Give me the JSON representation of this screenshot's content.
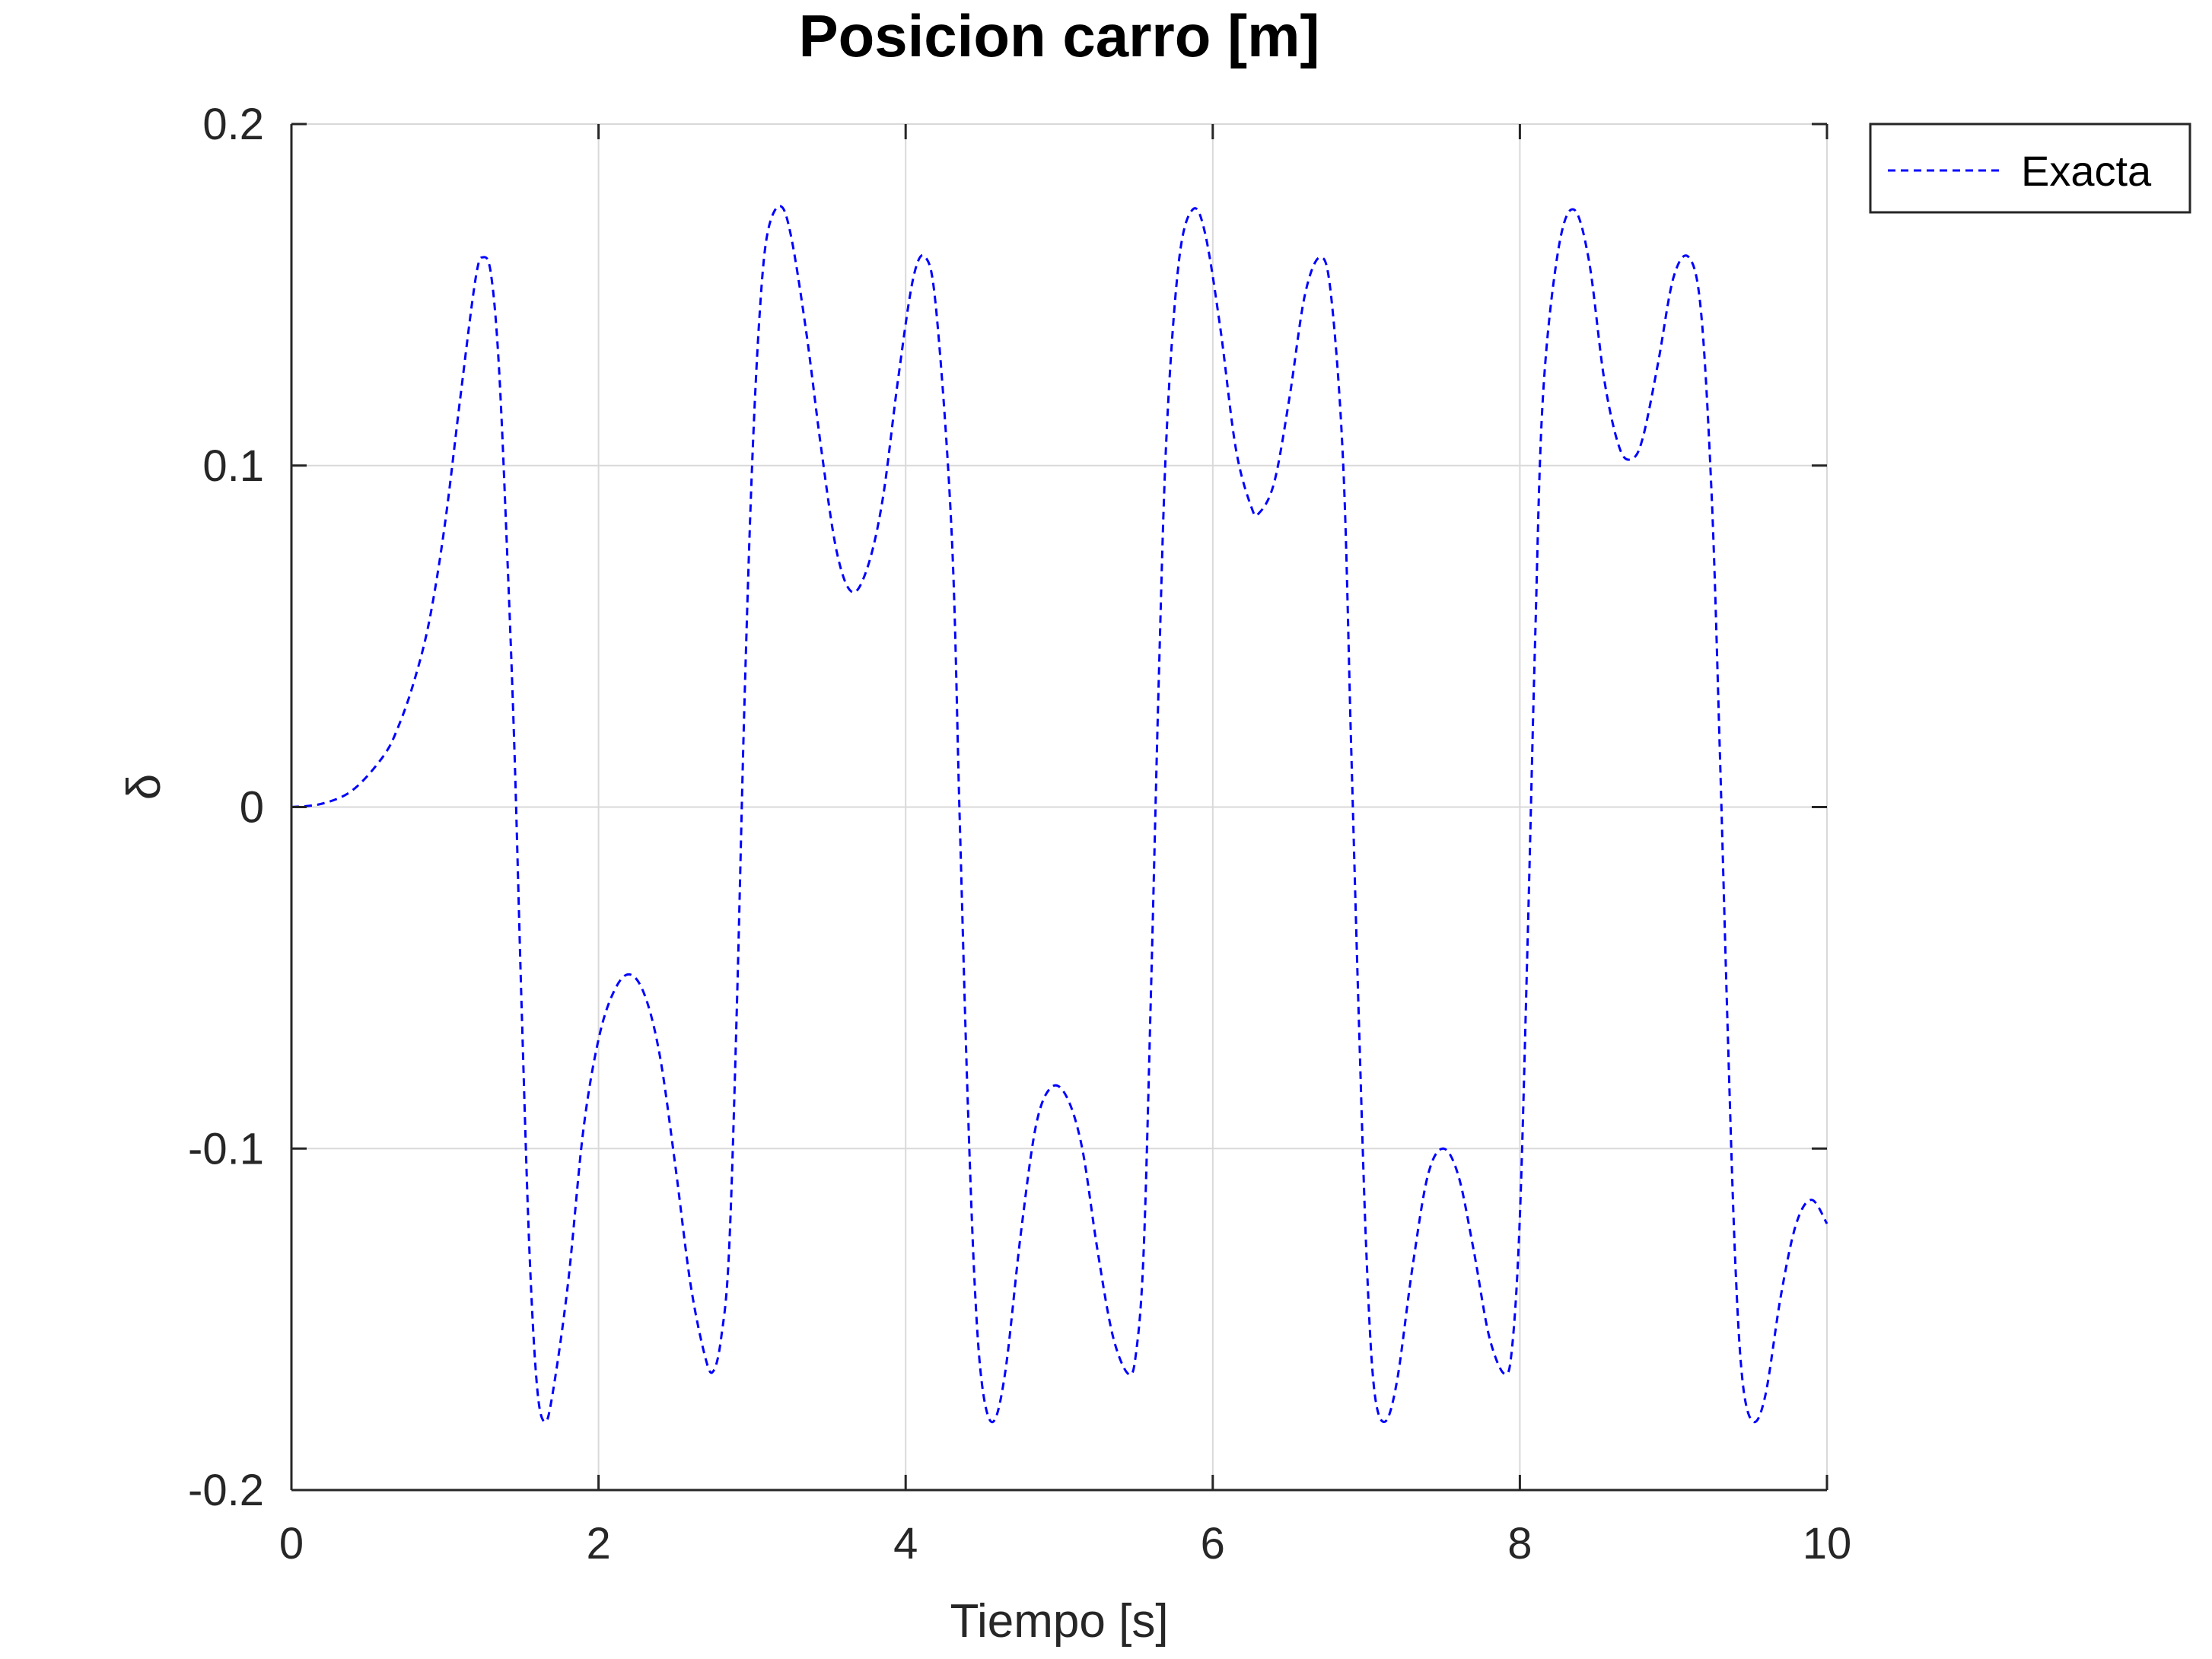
{
  "chart_data": {
    "type": "line",
    "title": "Posicion carro [m]",
    "xlabel": "Tiempo [s]",
    "ylabel": "δ",
    "xlim": [
      0,
      10
    ],
    "ylim": [
      -0.2,
      0.2
    ],
    "xticks": [
      0,
      2,
      4,
      6,
      8,
      10
    ],
    "yticks": [
      -0.2,
      -0.1,
      0,
      0.1,
      0.2
    ],
    "xtick_labels": [
      "0",
      "2",
      "4",
      "6",
      "8",
      "10"
    ],
    "ytick_labels": [
      "-0.2",
      "-0.1",
      "0",
      "0.1",
      "0.2"
    ],
    "grid": true,
    "legend_position": "outside-top-right",
    "series": [
      {
        "name": "Exacta",
        "color": "#0000ff",
        "style": "dashed",
        "points": [
          [
            0,
            0
          ],
          [
            0.2,
            0.001
          ],
          [
            0.4,
            0.005
          ],
          [
            0.6,
            0.015
          ],
          [
            0.7,
            0.024
          ],
          [
            0.8,
            0.037
          ],
          [
            0.9,
            0.055
          ],
          [
            1.0,
            0.083
          ],
          [
            1.1,
            0.12
          ],
          [
            1.2,
            0.155
          ],
          [
            1.25,
            0.161
          ],
          [
            1.3,
            0.156
          ],
          [
            1.35,
            0.13
          ],
          [
            1.4,
            0.08
          ],
          [
            1.45,
            0.02
          ],
          [
            1.5,
            -0.06
          ],
          [
            1.55,
            -0.13
          ],
          [
            1.6,
            -0.17
          ],
          [
            1.65,
            -0.18
          ],
          [
            1.7,
            -0.172
          ],
          [
            1.8,
            -0.14
          ],
          [
            1.9,
            -0.095
          ],
          [
            2.0,
            -0.068
          ],
          [
            2.1,
            -0.054
          ],
          [
            2.2,
            -0.049
          ],
          [
            2.3,
            -0.055
          ],
          [
            2.4,
            -0.073
          ],
          [
            2.5,
            -0.105
          ],
          [
            2.6,
            -0.14
          ],
          [
            2.7,
            -0.162
          ],
          [
            2.75,
            -0.165
          ],
          [
            2.8,
            -0.155
          ],
          [
            2.85,
            -0.13
          ],
          [
            2.9,
            -0.06
          ],
          [
            2.95,
            0.03
          ],
          [
            3.0,
            0.1
          ],
          [
            3.05,
            0.145
          ],
          [
            3.1,
            0.168
          ],
          [
            3.18,
            0.176
          ],
          [
            3.25,
            0.168
          ],
          [
            3.35,
            0.14
          ],
          [
            3.45,
            0.105
          ],
          [
            3.55,
            0.075
          ],
          [
            3.65,
            0.063
          ],
          [
            3.75,
            0.07
          ],
          [
            3.85,
            0.09
          ],
          [
            3.95,
            0.125
          ],
          [
            4.05,
            0.155
          ],
          [
            4.13,
            0.161
          ],
          [
            4.2,
            0.145
          ],
          [
            4.3,
            0.08
          ],
          [
            4.35,
            0.0
          ],
          [
            4.4,
            -0.08
          ],
          [
            4.45,
            -0.14
          ],
          [
            4.5,
            -0.17
          ],
          [
            4.57,
            -0.18
          ],
          [
            4.65,
            -0.165
          ],
          [
            4.75,
            -0.125
          ],
          [
            4.85,
            -0.093
          ],
          [
            4.95,
            -0.082
          ],
          [
            5.05,
            -0.085
          ],
          [
            5.15,
            -0.1
          ],
          [
            5.25,
            -0.13
          ],
          [
            5.35,
            -0.155
          ],
          [
            5.45,
            -0.166
          ],
          [
            5.5,
            -0.16
          ],
          [
            5.55,
            -0.13
          ],
          [
            5.6,
            -0.05
          ],
          [
            5.65,
            0.04
          ],
          [
            5.7,
            0.11
          ],
          [
            5.78,
            0.16
          ],
          [
            5.87,
            0.175
          ],
          [
            5.95,
            0.168
          ],
          [
            6.05,
            0.14
          ],
          [
            6.15,
            0.105
          ],
          [
            6.25,
            0.088
          ],
          [
            6.3,
            0.086
          ],
          [
            6.4,
            0.095
          ],
          [
            6.5,
            0.12
          ],
          [
            6.6,
            0.15
          ],
          [
            6.7,
            0.161
          ],
          [
            6.77,
            0.15
          ],
          [
            6.85,
            0.1
          ],
          [
            6.9,
            0.02
          ],
          [
            6.95,
            -0.06
          ],
          [
            7.0,
            -0.13
          ],
          [
            7.05,
            -0.17
          ],
          [
            7.12,
            -0.18
          ],
          [
            7.2,
            -0.168
          ],
          [
            7.3,
            -0.135
          ],
          [
            7.4,
            -0.108
          ],
          [
            7.5,
            -0.1
          ],
          [
            7.6,
            -0.108
          ],
          [
            7.7,
            -0.13
          ],
          [
            7.8,
            -0.155
          ],
          [
            7.9,
            -0.166
          ],
          [
            7.95,
            -0.158
          ],
          [
            8.0,
            -0.12
          ],
          [
            8.05,
            -0.04
          ],
          [
            8.1,
            0.05
          ],
          [
            8.15,
            0.12
          ],
          [
            8.25,
            0.163
          ],
          [
            8.35,
            0.175
          ],
          [
            8.45,
            0.16
          ],
          [
            8.55,
            0.125
          ],
          [
            8.65,
            0.105
          ],
          [
            8.73,
            0.102
          ],
          [
            8.8,
            0.108
          ],
          [
            8.9,
            0.13
          ],
          [
            9.0,
            0.155
          ],
          [
            9.1,
            0.161
          ],
          [
            9.18,
            0.145
          ],
          [
            9.25,
            0.09
          ],
          [
            9.3,
            0.02
          ],
          [
            9.35,
            -0.06
          ],
          [
            9.4,
            -0.13
          ],
          [
            9.45,
            -0.168
          ],
          [
            9.52,
            -0.18
          ],
          [
            9.6,
            -0.172
          ],
          [
            9.7,
            -0.143
          ],
          [
            9.8,
            -0.122
          ],
          [
            9.9,
            -0.115
          ],
          [
            10.0,
            -0.122
          ]
        ]
      }
    ]
  },
  "colors": {
    "series": "#0000ff",
    "axis": "#262626",
    "grid": "#d9d9d9",
    "legend_border": "#262626",
    "title": "#000000"
  }
}
